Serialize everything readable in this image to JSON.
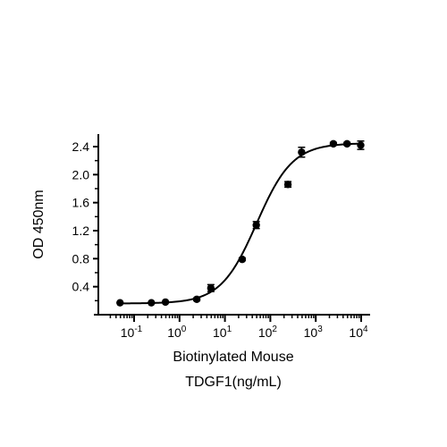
{
  "chart_data": {
    "type": "scatter",
    "xlabel_lines": [
      "Biotinylated Mouse",
      "TDGF1(ng/mL)"
    ],
    "ylabel": "OD 450nm",
    "x_scale": "log",
    "xlim": [
      0.03,
      10000
    ],
    "ylim": [
      0.0,
      2.6
    ],
    "x_ticks": [
      {
        "value": 0.1,
        "base": "10",
        "exp": "-1"
      },
      {
        "value": 1,
        "base": "10",
        "exp": "0"
      },
      {
        "value": 10,
        "base": "10",
        "exp": "1"
      },
      {
        "value": 100,
        "base": "10",
        "exp": "2"
      },
      {
        "value": 1000,
        "base": "10",
        "exp": "3"
      },
      {
        "value": 10000,
        "base": "10",
        "exp": "4"
      }
    ],
    "y_ticks": [
      {
        "value": 0.4,
        "label": "0.4"
      },
      {
        "value": 0.8,
        "label": "0.8"
      },
      {
        "value": 1.2,
        "label": "1.2"
      },
      {
        "value": 1.6,
        "label": "1.6"
      },
      {
        "value": 2.0,
        "label": "2.0"
      },
      {
        "value": 2.4,
        "label": "2.4"
      }
    ],
    "grid": false,
    "series": [
      {
        "points": [
          {
            "x": 0.049,
            "y": 0.17,
            "err": 0.01
          },
          {
            "x": 0.24,
            "y": 0.17,
            "err": 0.01
          },
          {
            "x": 0.49,
            "y": 0.18,
            "err": 0.01
          },
          {
            "x": 2.4,
            "y": 0.22,
            "err": 0.02
          },
          {
            "x": 4.9,
            "y": 0.38,
            "err": 0.05
          },
          {
            "x": 24,
            "y": 0.79,
            "err": 0.02
          },
          {
            "x": 49,
            "y": 1.28,
            "err": 0.05
          },
          {
            "x": 244,
            "y": 1.86,
            "err": 0.04
          },
          {
            "x": 488,
            "y": 2.32,
            "err": 0.07
          },
          {
            "x": 2441,
            "y": 2.44,
            "err": 0.02
          },
          {
            "x": 4883,
            "y": 2.44,
            "err": 0.02
          },
          {
            "x": 9766,
            "y": 2.42,
            "err": 0.06
          }
        ],
        "fit": {
          "bottom": 0.16,
          "top": 2.45,
          "ec50": 50,
          "hill": 1.1
        }
      }
    ]
  }
}
